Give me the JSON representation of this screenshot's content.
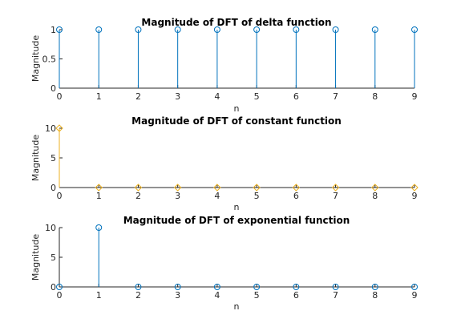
{
  "window": {
    "title": "Figure"
  },
  "colors": {
    "series_blue": "#0072bd",
    "series_orange": "#edb120",
    "axes": "#262626"
  },
  "chart_data": [
    {
      "type": "stem",
      "title": "Magnitude of DFT of delta function",
      "xlabel": "n",
      "ylabel": "Magnitude",
      "xlim": [
        0,
        9
      ],
      "ylim": [
        0,
        1
      ],
      "xticks": [
        "0",
        "1",
        "2",
        "3",
        "4",
        "5",
        "6",
        "7",
        "8",
        "9"
      ],
      "yticks": [
        "0",
        "0.5",
        "1"
      ],
      "ytick_values": [
        0,
        0.5,
        1
      ],
      "color": "#0072bd",
      "marker": "circle",
      "x": [
        0,
        1,
        2,
        3,
        4,
        5,
        6,
        7,
        8,
        9
      ],
      "values": [
        1,
        1,
        1,
        1,
        1,
        1,
        1,
        1,
        1,
        1
      ]
    },
    {
      "type": "stem",
      "title": "Magnitude of DFT of constant function",
      "xlabel": "n",
      "ylabel": "Magnitude",
      "xlim": [
        0,
        9
      ],
      "ylim": [
        0,
        10
      ],
      "xticks": [
        "0",
        "1",
        "2",
        "3",
        "4",
        "5",
        "6",
        "7",
        "8",
        "9"
      ],
      "yticks": [
        "0",
        "5",
        "10"
      ],
      "ytick_values": [
        0,
        5,
        10
      ],
      "color": "#edb120",
      "marker": "diamond",
      "x": [
        0,
        1,
        2,
        3,
        4,
        5,
        6,
        7,
        8,
        9
      ],
      "values": [
        10,
        0,
        0,
        0,
        0,
        0,
        0,
        0,
        0,
        0
      ]
    },
    {
      "type": "stem",
      "title": "Magnitude of DFT of exponential function",
      "xlabel": "n",
      "ylabel": "Magnitude",
      "xlim": [
        0,
        9
      ],
      "ylim": [
        0,
        10
      ],
      "xticks": [
        "0",
        "1",
        "2",
        "3",
        "4",
        "5",
        "6",
        "7",
        "8",
        "9"
      ],
      "yticks": [
        "0",
        "5",
        "10"
      ],
      "ytick_values": [
        0,
        5,
        10
      ],
      "color": "#0072bd",
      "marker": "circle",
      "x": [
        0,
        1,
        2,
        3,
        4,
        5,
        6,
        7,
        8,
        9
      ],
      "values": [
        0,
        10,
        0,
        0,
        0,
        0,
        0,
        0,
        0,
        0
      ]
    }
  ]
}
